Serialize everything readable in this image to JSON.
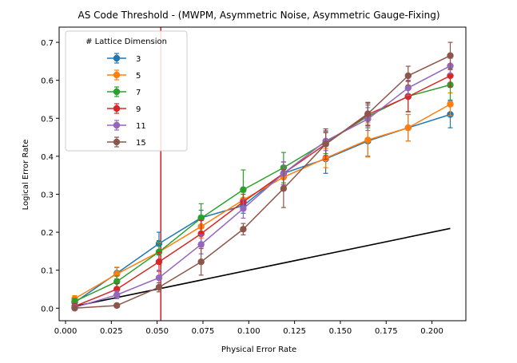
{
  "chart_data": {
    "type": "line",
    "title": "AS Code Threshold - (MWPM, Asymmetric Noise, Asymmetric Gauge-Fixing)",
    "xlabel": "Physical Error Rate",
    "ylabel": "Logical Error Rate",
    "xlim": [
      -0.0035,
      0.2185
    ],
    "ylim": [
      -0.033,
      0.74
    ],
    "x_ticks": [
      "0.000",
      "0.025",
      "0.050",
      "0.075",
      "0.100",
      "0.125",
      "0.150",
      "0.175",
      "0.200"
    ],
    "x_tick_values": [
      0.0,
      0.025,
      0.05,
      0.075,
      0.1,
      0.125,
      0.15,
      0.175,
      0.2
    ],
    "y_ticks": [
      "0.0",
      "0.1",
      "0.2",
      "0.3",
      "0.4",
      "0.5",
      "0.6",
      "0.7"
    ],
    "y_tick_values": [
      0.0,
      0.1,
      0.2,
      0.3,
      0.4,
      0.5,
      0.6,
      0.7
    ],
    "grid": false,
    "legend": {
      "title": "# Lattice Dimension",
      "placement": "top-left"
    },
    "x": [
      0.005,
      0.028,
      0.051,
      0.074,
      0.097,
      0.119,
      0.142,
      0.165,
      0.187,
      0.21
    ],
    "series": [
      {
        "name": "3",
        "color": "#1f77b4",
        "values": [
          0.015,
          0.092,
          0.17,
          0.238,
          0.27,
          0.355,
          0.393,
          0.44,
          0.475,
          0.51
        ],
        "errors": [
          0.008,
          0.015,
          0.03,
          0.02,
          0.02,
          0.03,
          0.038,
          0.04,
          0.035,
          0.035
        ]
      },
      {
        "name": "5",
        "color": "#ff7f0e",
        "values": [
          0.025,
          0.09,
          0.148,
          0.215,
          0.285,
          0.345,
          0.395,
          0.443,
          0.475,
          0.537
        ],
        "errors": [
          0.008,
          0.018,
          0.025,
          0.03,
          0.02,
          0.03,
          0.025,
          0.045,
          0.035,
          0.03
        ]
      },
      {
        "name": "7",
        "color": "#2ca02c",
        "values": [
          0.018,
          0.07,
          0.148,
          0.237,
          0.312,
          0.37,
          0.437,
          0.505,
          0.558,
          0.588
        ],
        "errors": [
          0.008,
          0.015,
          0.03,
          0.038,
          0.052,
          0.04,
          0.03,
          0.03,
          0.04,
          0.04
        ]
      },
      {
        "name": "9",
        "color": "#d62728",
        "values": [
          0.005,
          0.05,
          0.122,
          0.196,
          0.28,
          0.355,
          0.432,
          0.51,
          0.557,
          0.612
        ],
        "errors": [
          0.005,
          0.015,
          0.025,
          0.035,
          0.02,
          0.03,
          0.04,
          0.03,
          0.04,
          0.03
        ]
      },
      {
        "name": "11",
        "color": "#9467bd",
        "values": [
          0.002,
          0.035,
          0.08,
          0.168,
          0.262,
          0.355,
          0.44,
          0.498,
          0.58,
          0.638
        ],
        "errors": [
          0.003,
          0.01,
          0.02,
          0.025,
          0.025,
          0.03,
          0.025,
          0.03,
          0.02,
          0.02
        ]
      },
      {
        "name": "15",
        "color": "#8c564b",
        "values": [
          0.0,
          0.007,
          0.055,
          0.122,
          0.208,
          0.315,
          0.432,
          0.512,
          0.612,
          0.665
        ],
        "errors": [
          0.002,
          0.005,
          0.012,
          0.035,
          0.015,
          0.05,
          0.03,
          0.03,
          0.025,
          0.035
        ]
      }
    ],
    "reference_line": {
      "color": "#000000",
      "x": [
        0.005,
        0.21
      ],
      "y": [
        0.005,
        0.21
      ]
    },
    "threshold_line": {
      "color": "#d62728",
      "x": 0.052
    }
  }
}
